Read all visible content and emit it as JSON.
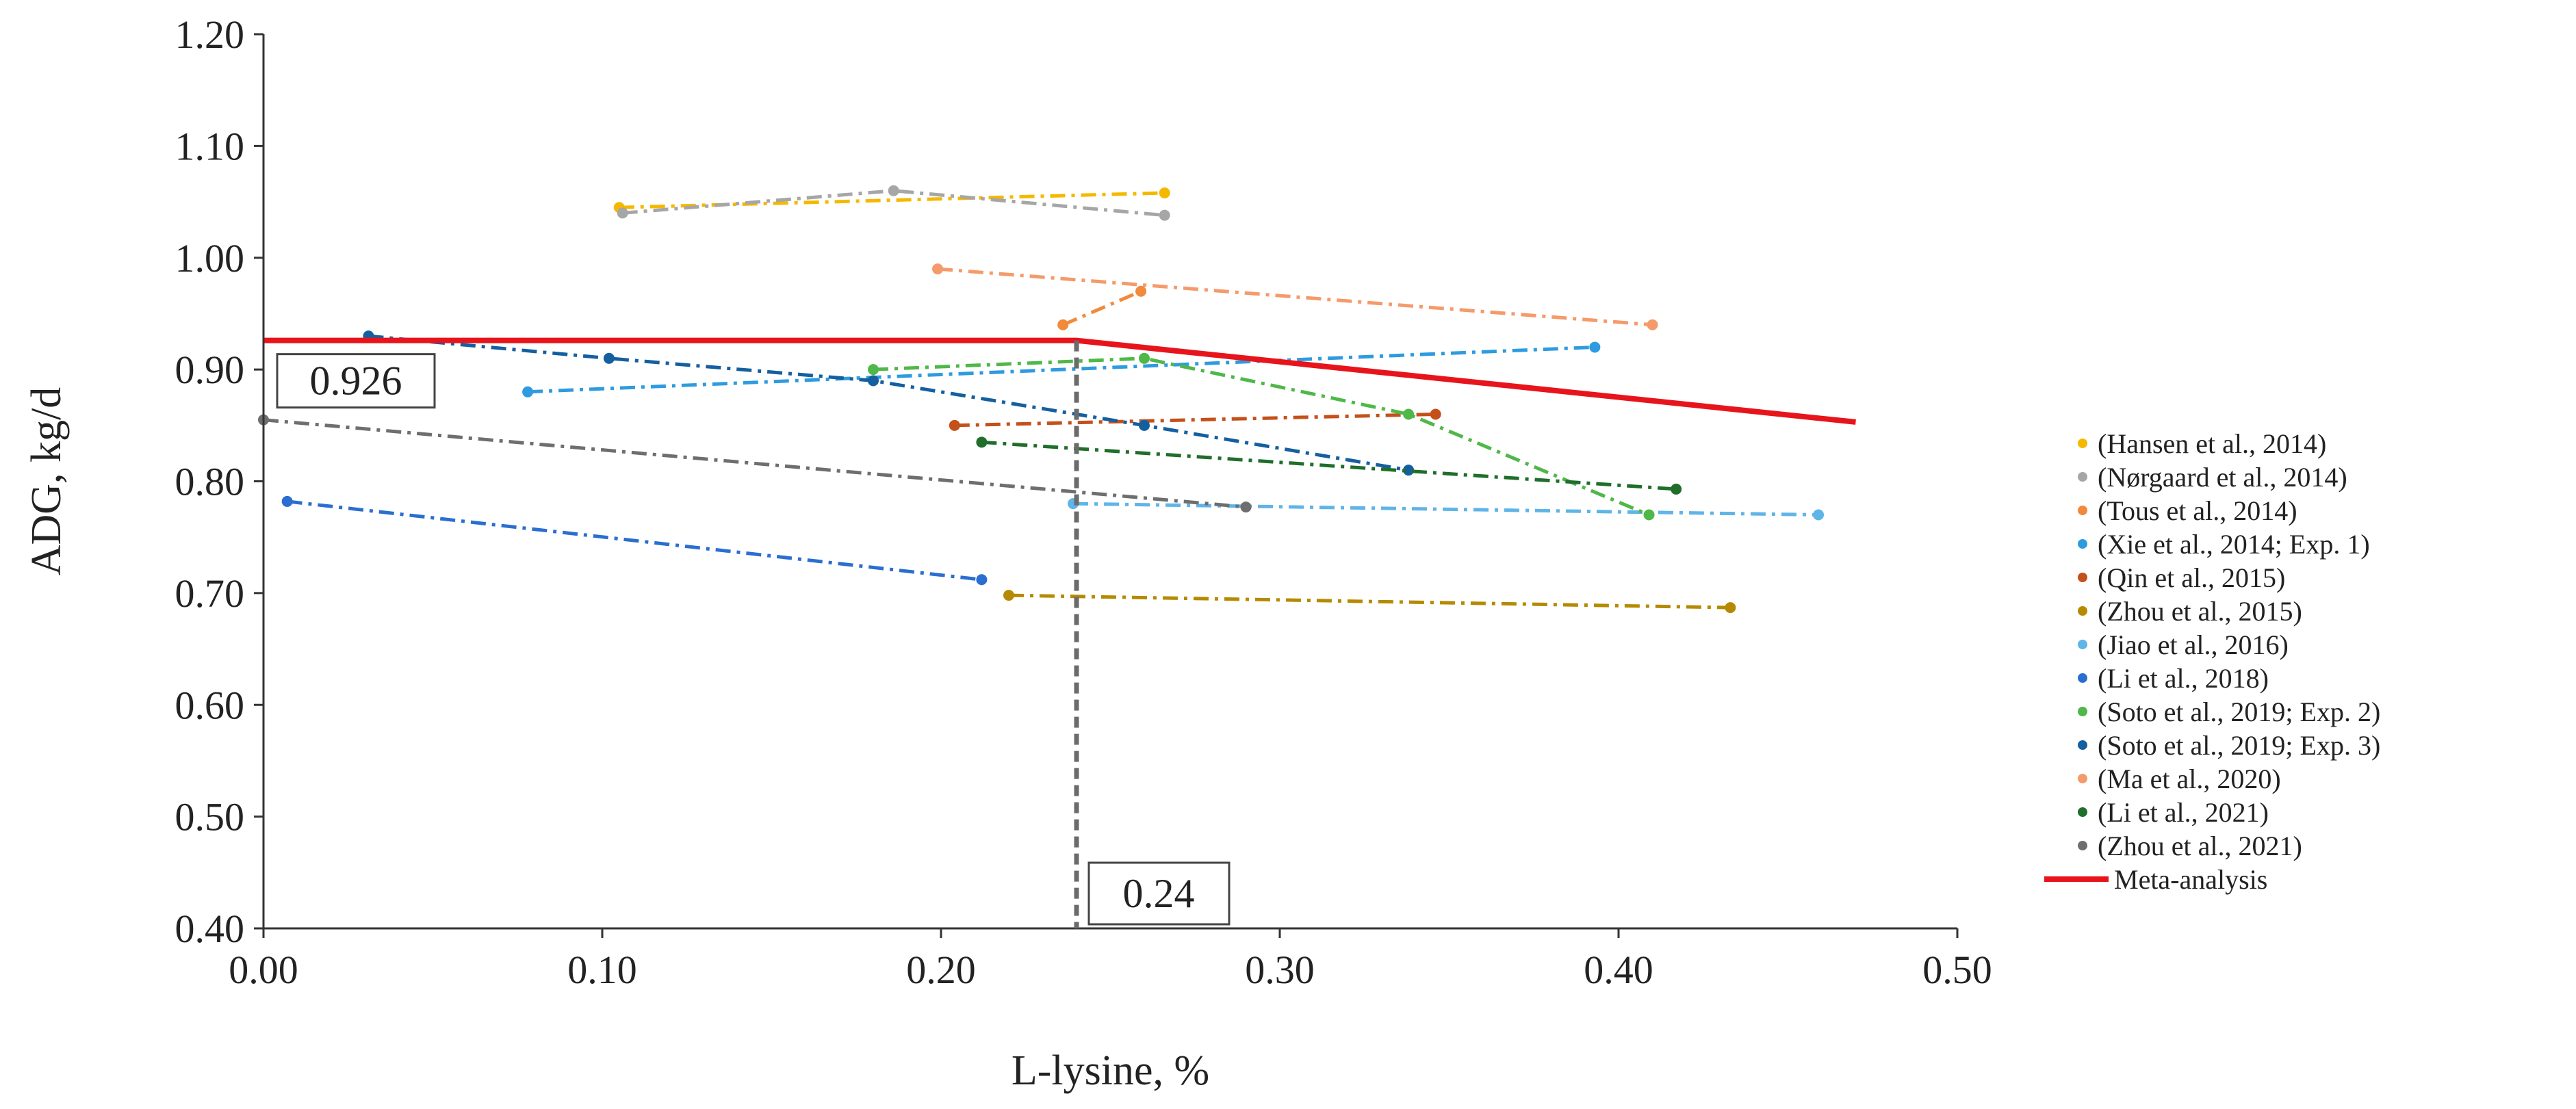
{
  "chart_data": {
    "type": "line",
    "title": "",
    "xlabel": "L-lysine, %",
    "ylabel": "ADG, kg/d",
    "xlim": [
      0,
      0.5
    ],
    "ylim": [
      0.4,
      1.2
    ],
    "x_ticks": [
      "0.00",
      "0.10",
      "0.20",
      "0.30",
      "0.40",
      "0.50"
    ],
    "y_ticks": [
      "0.40",
      "0.50",
      "0.60",
      "0.70",
      "0.80",
      "0.90",
      "1.00",
      "1.10",
      "1.20"
    ],
    "grid": false,
    "legend_position": "right",
    "series": [
      {
        "name": "(Hansen et al., 2014)",
        "color": "#f5b800",
        "x": [
          0.105,
          0.266
        ],
        "y": [
          1.045,
          1.058
        ]
      },
      {
        "name": "(Nørgaard et al., 2014)",
        "color": "#a6a6a6",
        "x": [
          0.106,
          0.186,
          0.266
        ],
        "y": [
          1.04,
          1.06,
          1.038
        ]
      },
      {
        "name": "(Tous et al., 2014)",
        "color": "#f28a3c",
        "x": [
          0.236,
          0.259
        ],
        "y": [
          0.94,
          0.97
        ]
      },
      {
        "name": "(Xie et al., 2014; Exp. 1)",
        "color": "#2e9be0",
        "x": [
          0.078,
          0.393
        ],
        "y": [
          0.88,
          0.92
        ]
      },
      {
        "name": "(Qin et al., 2015)",
        "color": "#c4501a",
        "x": [
          0.204,
          0.346
        ],
        "y": [
          0.85,
          0.86
        ]
      },
      {
        "name": "(Zhou et al., 2015)",
        "color": "#b58a00",
        "x": [
          0.22,
          0.433
        ],
        "y": [
          0.698,
          0.687
        ]
      },
      {
        "name": "(Jiao et al., 2016)",
        "color": "#5fb4e8",
        "x": [
          0.239,
          0.459
        ],
        "y": [
          0.78,
          0.77
        ]
      },
      {
        "name": "(Li et al., 2018)",
        "color": "#2b6ed1",
        "x": [
          0.007,
          0.212
        ],
        "y": [
          0.782,
          0.712
        ]
      },
      {
        "name": "(Soto et al., 2019; Exp. 2)",
        "color": "#4fb848",
        "x": [
          0.18,
          0.26,
          0.338,
          0.409
        ],
        "y": [
          0.9,
          0.91,
          0.86,
          0.77
        ]
      },
      {
        "name": "(Soto et al., 2019; Exp. 3)",
        "color": "#145fa0",
        "x": [
          0.031,
          0.102,
          0.18,
          0.26,
          0.338
        ],
        "y": [
          0.93,
          0.91,
          0.89,
          0.85,
          0.81
        ]
      },
      {
        "name": "(Ma et al., 2020)",
        "color": "#f59a6a",
        "x": [
          0.199,
          0.41
        ],
        "y": [
          0.99,
          0.94
        ]
      },
      {
        "name": "(Li et al., 2021)",
        "color": "#1f6e2a",
        "x": [
          0.212,
          0.417
        ],
        "y": [
          0.835,
          0.793
        ]
      },
      {
        "name": "(Zhou et al., 2021)",
        "color": "#6e6e6e",
        "x": [
          0.0,
          0.29
        ],
        "y": [
          0.855,
          0.777
        ]
      }
    ],
    "meta_analysis": {
      "name": "Meta-analysis",
      "color": "#e8141c",
      "x": [
        0.0,
        0.24,
        0.47
      ],
      "y": [
        0.926,
        0.926,
        0.853
      ]
    },
    "breakpoint": {
      "x": 0.24,
      "y": 0.926,
      "x_label": "0.24",
      "y_label": "0.926"
    }
  }
}
